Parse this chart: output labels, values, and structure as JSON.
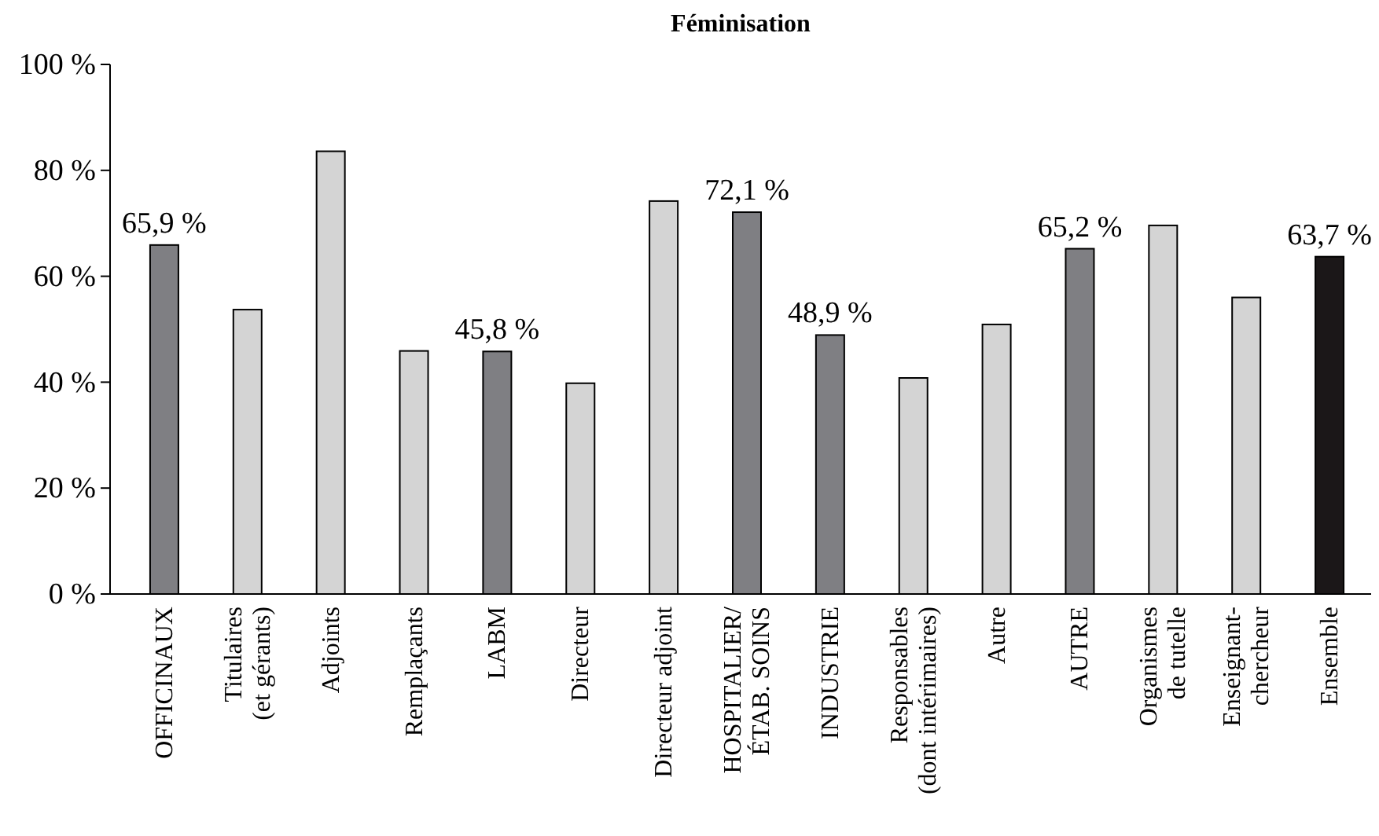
{
  "chart_data": {
    "type": "bar",
    "title": "Féminisation",
    "categories": [
      "OFFICINAUX",
      "Titulaires\n(et gérants)",
      "Adjoints",
      "Remplaçants",
      "LABM",
      "Directeur",
      "Directeur adjoint",
      "HOSPITALIER/\nÉTAB. SOINS",
      "INDUSTRIE",
      "Responsables\n(dont intérimaires)",
      "Autre",
      "AUTRE",
      "Organismes\nde tutelle",
      "Enseignant-\nchercheur",
      "Ensemble"
    ],
    "values": [
      65.9,
      53.7,
      83.6,
      45.9,
      45.8,
      39.8,
      74.2,
      72.1,
      48.9,
      40.8,
      50.9,
      65.2,
      69.6,
      56.0,
      63.7
    ],
    "colors": [
      "#7f7f83",
      "#d4d4d4",
      "#d4d4d4",
      "#d4d4d4",
      "#7f7f83",
      "#d4d4d4",
      "#d4d4d4",
      "#7f7f83",
      "#7f7f83",
      "#d4d4d4",
      "#d4d4d4",
      "#7f7f83",
      "#d4d4d4",
      "#d4d4d4",
      "#1b1718"
    ],
    "value_labels": [
      "65,9 %",
      null,
      null,
      null,
      "45,8 %",
      null,
      null,
      "72,1 %",
      "48,9 %",
      null,
      null,
      "65,2 %",
      null,
      null,
      "63,7 %"
    ],
    "ylim": [
      0,
      100
    ],
    "yticks": [
      {
        "value": 0,
        "label": "0 %"
      },
      {
        "value": 20,
        "label": "20 %"
      },
      {
        "value": 40,
        "label": "40 %"
      },
      {
        "value": 60,
        "label": "60 %"
      },
      {
        "value": 80,
        "label": "80 %"
      },
      {
        "value": 100,
        "label": "100 %"
      }
    ],
    "grid": false
  }
}
